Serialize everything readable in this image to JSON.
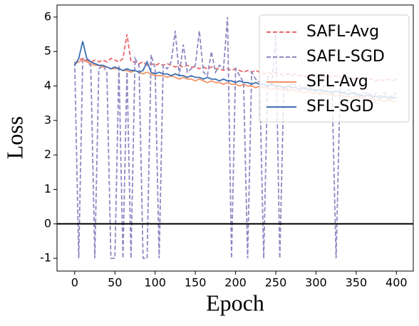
{
  "chart_data": {
    "type": "line",
    "xlabel": "Epoch",
    "ylabel": "Loss",
    "x": [
      0,
      5,
      10,
      15,
      20,
      25,
      30,
      35,
      40,
      45,
      50,
      55,
      60,
      65,
      70,
      75,
      80,
      85,
      90,
      95,
      100,
      105,
      110,
      115,
      120,
      125,
      130,
      135,
      140,
      145,
      150,
      155,
      160,
      165,
      170,
      175,
      180,
      185,
      190,
      195,
      200,
      205,
      210,
      215,
      220,
      225,
      230,
      235,
      240,
      245,
      250,
      255,
      260,
      265,
      270,
      275,
      280,
      285,
      290,
      295,
      300,
      305,
      310,
      315,
      320,
      325,
      330,
      335,
      340,
      345,
      350,
      355,
      360,
      365,
      370,
      375,
      380,
      385,
      390,
      395,
      400
    ],
    "series": [
      {
        "name": "SAFL-Avg",
        "color": "#e8676b",
        "dash": true,
        "values": [
          4.65,
          4.75,
          4.8,
          4.75,
          4.7,
          4.75,
          4.7,
          4.75,
          4.7,
          4.8,
          4.75,
          4.7,
          4.8,
          5.5,
          4.7,
          4.7,
          4.65,
          4.7,
          4.6,
          4.65,
          4.6,
          4.65,
          4.6,
          4.65,
          4.6,
          4.55,
          4.6,
          4.55,
          4.6,
          4.55,
          4.55,
          4.5,
          4.55,
          4.5,
          4.55,
          4.5,
          4.5,
          4.45,
          4.5,
          4.45,
          4.5,
          4.45,
          4.4,
          4.45,
          4.4,
          4.45,
          4.4,
          4.35,
          4.4,
          4.35,
          4.4,
          4.35,
          4.3,
          4.35,
          4.3,
          4.35,
          4.3,
          4.3,
          4.25,
          4.3,
          4.25,
          4.3,
          4.25,
          4.3,
          4.25,
          4.3,
          4.25,
          4.2,
          4.25,
          4.2,
          4.25,
          4.2,
          4.25,
          4.2,
          4.2,
          4.15,
          4.2,
          4.15,
          4.2,
          4.15,
          4.2
        ]
      },
      {
        "name": "SAFL-SGD",
        "color": "#8e88c2",
        "dash": true,
        "values": [
          4.7,
          -1,
          4.8,
          4.7,
          4.6,
          -1,
          4.5,
          4.6,
          4.4,
          -1,
          -1,
          4.6,
          -1,
          4.5,
          -1,
          4.8,
          4.6,
          -1,
          -1,
          4.9,
          4.5,
          -1,
          4.6,
          4.5,
          4.7,
          5.6,
          4.3,
          5.2,
          4.4,
          4.5,
          4.6,
          5.6,
          4.4,
          4.3,
          5.0,
          4.4,
          4.6,
          4.5,
          6.0,
          -1,
          4.5,
          4.3,
          4.1,
          -1,
          4.4,
          4.2,
          4.1,
          -1,
          4.3,
          4.0,
          5.5,
          -1,
          4.0,
          3.9,
          4.1,
          4.0,
          4.0,
          3.9,
          4.0,
          3.9,
          3.9,
          3.8,
          4.0,
          4.0,
          3.9,
          -1,
          3.9,
          3.8,
          3.9,
          3.8,
          3.8,
          3.7,
          3.8,
          3.8,
          3.7,
          3.8,
          3.7,
          3.8,
          3.7,
          3.7,
          3.8
        ]
      },
      {
        "name": "SFL-Avg",
        "color": "#f4956a",
        "dash": false,
        "values": [
          4.65,
          4.7,
          4.75,
          4.7,
          4.65,
          4.6,
          4.6,
          4.55,
          4.55,
          4.5,
          4.5,
          4.5,
          4.45,
          4.45,
          4.4,
          4.45,
          4.4,
          4.35,
          4.4,
          4.35,
          4.3,
          4.3,
          4.3,
          4.25,
          4.3,
          4.25,
          4.2,
          4.25,
          4.2,
          4.2,
          4.15,
          4.2,
          4.15,
          4.1,
          4.15,
          4.1,
          4.1,
          4.05,
          4.1,
          4.05,
          4.05,
          4.0,
          4.05,
          4.0,
          4.0,
          3.95,
          4.0,
          3.95,
          3.95,
          3.9,
          3.95,
          3.9,
          3.9,
          3.85,
          3.9,
          3.85,
          3.85,
          3.8,
          3.85,
          3.8,
          3.8,
          3.75,
          3.8,
          3.75,
          3.75,
          3.7,
          3.75,
          3.7,
          3.7,
          3.65,
          3.7,
          3.65,
          3.65,
          3.6,
          3.65,
          3.6,
          3.6,
          3.55,
          3.6,
          3.55,
          3.55
        ]
      },
      {
        "name": "SFL-SGD",
        "color": "#3d70b5",
        "dash": false,
        "values": [
          4.6,
          4.8,
          5.3,
          4.8,
          4.7,
          4.65,
          4.6,
          4.6,
          4.55,
          4.5,
          4.55,
          4.5,
          4.45,
          4.5,
          4.45,
          4.45,
          4.4,
          4.45,
          4.7,
          4.4,
          4.35,
          4.4,
          4.35,
          4.35,
          4.3,
          4.35,
          4.3,
          4.3,
          4.25,
          4.3,
          4.25,
          4.25,
          4.2,
          4.25,
          4.2,
          4.2,
          4.15,
          4.2,
          4.15,
          4.15,
          4.1,
          4.15,
          4.1,
          4.1,
          4.05,
          4.1,
          4.05,
          4.05,
          4.0,
          4.05,
          4.0,
          4.0,
          3.95,
          4.0,
          3.95,
          3.95,
          3.9,
          3.95,
          3.9,
          3.9,
          3.85,
          3.9,
          3.85,
          3.85,
          3.8,
          3.85,
          3.8,
          3.8,
          3.75,
          3.8,
          3.75,
          3.75,
          3.7,
          3.75,
          3.7,
          3.7,
          3.65,
          3.7,
          3.65,
          3.65,
          3.65
        ]
      }
    ],
    "xlim": [
      -22,
      421
    ],
    "ylim": [
      -1.37,
      6.35
    ],
    "xticks": [
      0,
      50,
      100,
      150,
      200,
      250,
      300,
      350,
      400
    ],
    "yticks": [
      -1,
      0,
      1,
      2,
      3,
      4,
      5,
      6
    ],
    "hline": 0,
    "legend": "upper right"
  }
}
